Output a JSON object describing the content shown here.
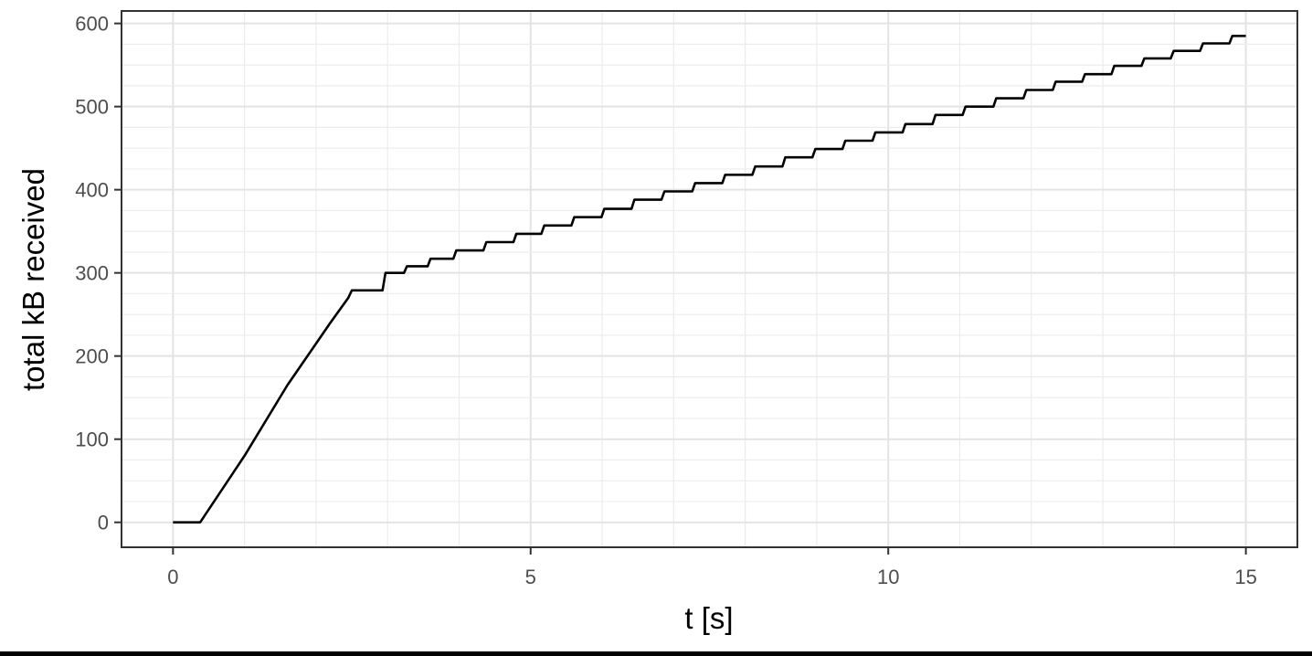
{
  "chart_data": {
    "type": "line",
    "title": "",
    "xlabel": "t [s]",
    "ylabel": "total kB received",
    "xlim": [
      -0.72,
      15.72
    ],
    "ylim": [
      -30,
      615
    ],
    "x_ticks": [
      0,
      5,
      10,
      15
    ],
    "x_tick_labels": [
      "0",
      "5",
      "10",
      "15"
    ],
    "y_ticks": [
      0,
      100,
      200,
      300,
      400,
      500,
      600
    ],
    "y_tick_labels": [
      "0",
      "100",
      "200",
      "300",
      "400",
      "500",
      "600"
    ],
    "x_minor_grid_step": 1,
    "y_minor_grid_step": 25,
    "grid": true,
    "line_color": "#000000",
    "series": [
      {
        "ramp": [
          [
            0,
            0
          ],
          [
            0.38,
            0
          ],
          [
            1.0,
            80
          ],
          [
            1.6,
            165
          ],
          [
            2.2,
            240
          ],
          [
            2.45,
            270
          ],
          [
            2.5,
            279
          ],
          [
            2.85,
            279
          ]
        ],
        "steps": [
          [
            2.97,
            300
          ],
          [
            3.27,
            308
          ],
          [
            3.6,
            317
          ],
          [
            3.96,
            327
          ],
          [
            4.38,
            337
          ],
          [
            4.8,
            347
          ],
          [
            5.19,
            357
          ],
          [
            5.61,
            367
          ],
          [
            6.03,
            377
          ],
          [
            6.45,
            388
          ],
          [
            6.87,
            398
          ],
          [
            7.3,
            408
          ],
          [
            7.72,
            418
          ],
          [
            8.14,
            428
          ],
          [
            8.56,
            439
          ],
          [
            8.98,
            449
          ],
          [
            9.4,
            459
          ],
          [
            9.82,
            469
          ],
          [
            10.24,
            479
          ],
          [
            10.66,
            490
          ],
          [
            11.08,
            500
          ],
          [
            11.51,
            510
          ],
          [
            11.93,
            520
          ],
          [
            12.34,
            530
          ],
          [
            12.75,
            539
          ],
          [
            13.16,
            549
          ],
          [
            13.58,
            558
          ],
          [
            13.99,
            567
          ],
          [
            14.4,
            576
          ],
          [
            14.81,
            585
          ]
        ],
        "end": [
          15.0,
          585
        ]
      }
    ]
  }
}
